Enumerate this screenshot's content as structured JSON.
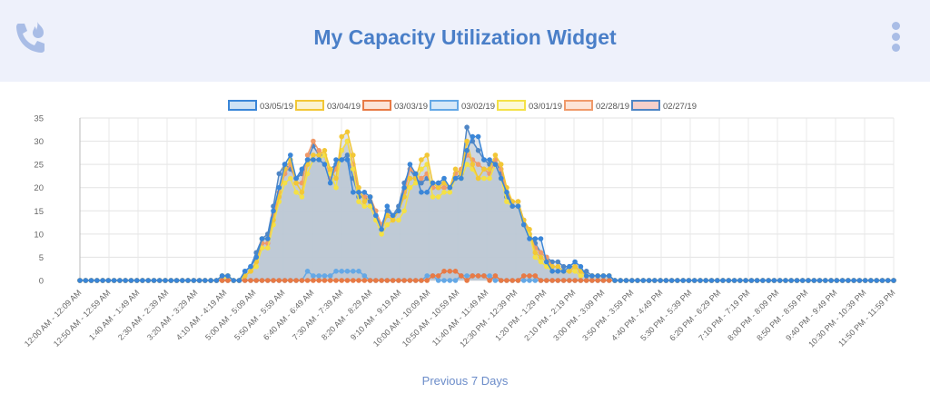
{
  "header": {
    "title": "My Capacity Utilization Widget",
    "icon": "phone-fire-icon",
    "menu_icon": "kebab-menu-icon"
  },
  "footer": {
    "previous_label": "Previous 7 Days"
  },
  "colors": {
    "header_bg": "#eef1fb",
    "title": "#4a7fc8",
    "fill": "#bcc8d4"
  },
  "chart_data": {
    "type": "line",
    "ylim": [
      0,
      35
    ],
    "yticks": [
      0,
      5,
      10,
      15,
      20,
      25,
      30,
      35
    ],
    "grid": true,
    "legend_position": "top",
    "xtick_labels": [
      "12:00 AM - 12:09 AM",
      "12:50 AM - 12:59 AM",
      "1:40 AM - 1:49 AM",
      "2:30 AM - 2:39 AM",
      "3:20 AM - 3:29 AM",
      "4:10 AM - 4:19 AM",
      "5:00 AM - 5:09 AM",
      "5:50 AM - 5:59 AM",
      "6:40 AM - 6:49 AM",
      "7:30 AM - 7:39 AM",
      "8:20 AM - 8:29 AM",
      "9:10 AM - 9:19 AM",
      "10:00 AM - 10:09 AM",
      "10:50 AM - 10:59 AM",
      "11:40 AM - 11:49 AM",
      "12:30 PM - 12:39 PM",
      "1:20 PM - 1:29 PM",
      "2:10 PM - 2:19 PM",
      "3:00 PM - 3:09 PM",
      "3:50 PM - 3:59 PM",
      "4:40 PM - 4:49 PM",
      "5:30 PM - 5:39 PM",
      "6:20 PM - 6:29 PM",
      "7:10 PM - 7:19 PM",
      "8:00 PM - 8:09 PM",
      "8:50 PM - 8:59 PM",
      "9:40 PM - 9:49 PM",
      "10:30 PM - 10:39 PM",
      "11:50 PM - 11:59 PM"
    ],
    "series": [
      {
        "name": "03/05/19",
        "color": "#3a86d8",
        "fill": "#cde2f5",
        "values": [
          0,
          0,
          0,
          0,
          0,
          0,
          0,
          0,
          0,
          0,
          0,
          0,
          0,
          0,
          0,
          0,
          0,
          0,
          0,
          0,
          0,
          0,
          0,
          0,
          0,
          1,
          1,
          0,
          0,
          2,
          3,
          5,
          9,
          9,
          15,
          20,
          25,
          27,
          22,
          24,
          26,
          26,
          26,
          25,
          21,
          26,
          26,
          26,
          19,
          19,
          19,
          18,
          14,
          11,
          16,
          14,
          15,
          20,
          25,
          23,
          19,
          19,
          21,
          21,
          22,
          20,
          22,
          22,
          28,
          31,
          31,
          26,
          26,
          25,
          22,
          19,
          16,
          16,
          12,
          9,
          9,
          9,
          4,
          2,
          2,
          2,
          3,
          4,
          3,
          1,
          1,
          1,
          1,
          1,
          0,
          0,
          0,
          0,
          0,
          0,
          0,
          0,
          0,
          0,
          0,
          0,
          0,
          0,
          0,
          0,
          0,
          0,
          0,
          0,
          0,
          0,
          0,
          0,
          0,
          0,
          0,
          0,
          0,
          0,
          0,
          0,
          0,
          0,
          0,
          0,
          0,
          0,
          0,
          0,
          0,
          0,
          0,
          0,
          0,
          0,
          0,
          0,
          0,
          0
        ]
      },
      {
        "name": "03/04/19",
        "color": "#f2c736",
        "fill": "#fbf3cf",
        "values": [
          0,
          0,
          0,
          0,
          0,
          0,
          0,
          0,
          0,
          0,
          0,
          0,
          0,
          0,
          0,
          0,
          0,
          0,
          0,
          0,
          0,
          0,
          0,
          0,
          0,
          1,
          1,
          0,
          0,
          1,
          2,
          4,
          9,
          9,
          13,
          18,
          24,
          26,
          21,
          19,
          25,
          27,
          27,
          28,
          24,
          22,
          31,
          32,
          27,
          20,
          17,
          18,
          14,
          11,
          14,
          13,
          15,
          18,
          22,
          22,
          26,
          27,
          21,
          20,
          21,
          20,
          24,
          23,
          30,
          25,
          22,
          24,
          24,
          27,
          25,
          20,
          17,
          17,
          13,
          11,
          6,
          5,
          4,
          3,
          3,
          2,
          2,
          3,
          2,
          1,
          1,
          1,
          1,
          1,
          0,
          0,
          0,
          0,
          0,
          0,
          0,
          0,
          0,
          0,
          0,
          0,
          0,
          0,
          0,
          0,
          0,
          0,
          0,
          0,
          0,
          0,
          0,
          0,
          0,
          0,
          0,
          0,
          0,
          0,
          0,
          0,
          0,
          0,
          0,
          0,
          0,
          0,
          0,
          0,
          0,
          0,
          0,
          0,
          0,
          0,
          0,
          0,
          0,
          0
        ]
      },
      {
        "name": "03/03/19",
        "color": "#e87a45",
        "fill": "#fce3d6",
        "values": [
          0,
          0,
          0,
          0,
          0,
          0,
          0,
          0,
          0,
          0,
          0,
          0,
          0,
          0,
          0,
          0,
          0,
          0,
          0,
          0,
          0,
          0,
          0,
          0,
          0,
          0,
          0,
          0,
          0,
          0,
          0,
          0,
          0,
          0,
          0,
          0,
          0,
          0,
          0,
          0,
          0,
          0,
          0,
          0,
          0,
          0,
          0,
          0,
          0,
          0,
          0,
          0,
          0,
          0,
          0,
          0,
          0,
          0,
          0,
          0,
          0,
          0,
          1,
          1,
          2,
          2,
          2,
          1,
          0,
          1,
          1,
          1,
          0,
          1,
          0,
          0,
          0,
          0,
          1,
          1,
          1,
          0,
          0,
          0,
          0,
          0,
          0,
          0,
          0,
          0,
          0,
          0,
          0,
          0,
          0,
          0,
          0,
          0,
          0,
          0,
          0,
          0,
          0,
          0,
          0,
          0,
          0,
          0,
          0,
          0,
          0,
          0,
          0,
          0,
          0,
          0,
          0,
          0,
          0,
          0,
          0,
          0,
          0,
          0,
          0,
          0,
          0,
          0,
          0,
          0,
          0,
          0,
          0,
          0,
          0,
          0,
          0,
          0,
          0,
          0,
          0,
          0,
          0,
          0
        ]
      },
      {
        "name": "03/02/19",
        "color": "#64a8e6",
        "fill": "#d6e8f8",
        "values": [
          0,
          0,
          0,
          0,
          0,
          0,
          0,
          0,
          0,
          0,
          0,
          0,
          0,
          0,
          0,
          0,
          0,
          0,
          0,
          0,
          0,
          0,
          0,
          0,
          0,
          0,
          0,
          0,
          0,
          0,
          0,
          0,
          0,
          0,
          0,
          0,
          0,
          0,
          0,
          0,
          2,
          1,
          1,
          1,
          1,
          2,
          2,
          2,
          2,
          2,
          1,
          0,
          0,
          0,
          0,
          0,
          0,
          0,
          0,
          0,
          0,
          1,
          1,
          0,
          0,
          0,
          0,
          1,
          1,
          1,
          1,
          1,
          1,
          0,
          0,
          0,
          0,
          0,
          0,
          0,
          0,
          0,
          0,
          0,
          0,
          0,
          0,
          0,
          0,
          0,
          0,
          0,
          0,
          0,
          0,
          0,
          0,
          0,
          0,
          0,
          0,
          0,
          0,
          0,
          0,
          0,
          0,
          0,
          0,
          0,
          0,
          0,
          0,
          0,
          0,
          0,
          0,
          0,
          0,
          0,
          0,
          0,
          0,
          0,
          0,
          0,
          0,
          0,
          0,
          0,
          0,
          0,
          0,
          0,
          0,
          0,
          0,
          0,
          0,
          0,
          0,
          0,
          0,
          0
        ]
      },
      {
        "name": "03/01/19",
        "color": "#f4e146",
        "fill": "#fcf9d6",
        "values": [
          0,
          0,
          0,
          0,
          0,
          0,
          0,
          0,
          0,
          0,
          0,
          0,
          0,
          0,
          0,
          0,
          0,
          0,
          0,
          0,
          0,
          0,
          0,
          0,
          0,
          0,
          1,
          0,
          0,
          1,
          2,
          3,
          7,
          7,
          12,
          17,
          21,
          22,
          19,
          18,
          23,
          26,
          26,
          27,
          23,
          20,
          28,
          30,
          24,
          17,
          16,
          16,
          13,
          10,
          12,
          13,
          13,
          15,
          20,
          21,
          24,
          25,
          18,
          18,
          19,
          19,
          22,
          22,
          25,
          24,
          22,
          22,
          22,
          25,
          22,
          17,
          16,
          16,
          12,
          10,
          5,
          4,
          3,
          2,
          2,
          2,
          2,
          2,
          1,
          1,
          1,
          1,
          1,
          1,
          0,
          0,
          0,
          0,
          0,
          0,
          0,
          0,
          0,
          0,
          0,
          0,
          0,
          0,
          0,
          0,
          0,
          0,
          0,
          0,
          0,
          0,
          0,
          0,
          0,
          0,
          0,
          0,
          0,
          0,
          0,
          0,
          0,
          0,
          0,
          0,
          0,
          0,
          0,
          0,
          0,
          0,
          0,
          0,
          0,
          0,
          0,
          0,
          0,
          0
        ]
      },
      {
        "name": "02/28/19",
        "color": "#f09a6a",
        "fill": "#fde4d6",
        "values": [
          0,
          0,
          0,
          0,
          0,
          0,
          0,
          0,
          0,
          0,
          0,
          0,
          0,
          0,
          0,
          0,
          0,
          0,
          0,
          0,
          0,
          0,
          0,
          0,
          0,
          0,
          0,
          0,
          0,
          1,
          2,
          4,
          8,
          8,
          14,
          19,
          23,
          25,
          21,
          21,
          27,
          30,
          28,
          27,
          22,
          24,
          28,
          30,
          25,
          19,
          18,
          18,
          15,
          12,
          14,
          14,
          15,
          19,
          24,
          23,
          22,
          23,
          20,
          20,
          20,
          20,
          23,
          24,
          27,
          26,
          25,
          24,
          23,
          26,
          24,
          19,
          17,
          17,
          13,
          10,
          7,
          6,
          5,
          3,
          3,
          2,
          2,
          3,
          2,
          1,
          1,
          1,
          1,
          1,
          0,
          0,
          0,
          0,
          0,
          0,
          0,
          0,
          0,
          0,
          0,
          0,
          0,
          0,
          0,
          0,
          0,
          0,
          0,
          0,
          0,
          0,
          0,
          0,
          0,
          0,
          0,
          0,
          0,
          0,
          0,
          0,
          0,
          0,
          0,
          0,
          0,
          0,
          0,
          0,
          0,
          0,
          0,
          0,
          0,
          0,
          0,
          0,
          0,
          0
        ]
      },
      {
        "name": "02/27/19",
        "color": "#4f86c6",
        "fill": "#f6d0cb",
        "values": [
          0,
          0,
          0,
          0,
          0,
          0,
          0,
          0,
          0,
          0,
          0,
          0,
          0,
          0,
          0,
          0,
          0,
          0,
          0,
          0,
          0,
          0,
          0,
          0,
          0,
          1,
          1,
          0,
          0,
          2,
          3,
          6,
          9,
          10,
          16,
          23,
          25,
          24,
          22,
          23,
          26,
          29,
          27,
          27,
          24,
          25,
          26,
          27,
          22,
          18,
          18,
          17,
          14,
          12,
          15,
          14,
          16,
          21,
          24,
          22,
          21,
          22,
          21,
          21,
          21,
          20,
          22,
          23,
          33,
          30,
          28,
          26,
          25,
          26,
          23,
          18,
          16,
          16,
          13,
          10,
          8,
          6,
          5,
          4,
          4,
          3,
          3,
          3,
          2,
          2,
          1,
          1,
          1,
          1,
          0,
          0,
          0,
          0,
          0,
          0,
          0,
          0,
          0,
          0,
          0,
          0,
          0,
          0,
          0,
          0,
          0,
          0,
          0,
          0,
          0,
          0,
          0,
          0,
          0,
          0,
          0,
          0,
          0,
          0,
          0,
          0,
          0,
          0,
          0,
          0,
          0,
          0,
          0,
          0,
          0,
          0,
          0,
          0,
          0,
          0,
          0,
          0,
          0,
          0
        ]
      }
    ]
  }
}
